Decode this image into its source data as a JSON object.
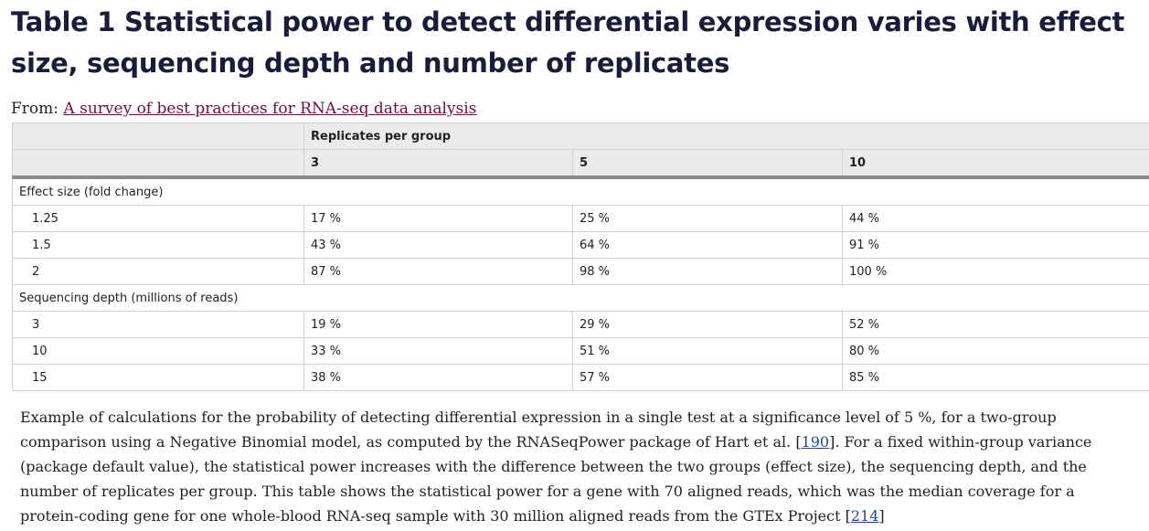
{
  "title": "Table 1 Statistical power to detect differential expression varies with effect size, sequencing depth and number of replicates",
  "from": {
    "label": "From:",
    "link_text": "A survey of best practices for RNA-seq data analysis"
  },
  "table": {
    "group_header": "Replicates per group",
    "columns": [
      "3",
      "5",
      "10"
    ],
    "sections": [
      {
        "label": "Effect size (fold change)",
        "rows": [
          {
            "label": "1.25",
            "values": [
              "17 %",
              "25 %",
              "44 %"
            ]
          },
          {
            "label": "1.5",
            "values": [
              "43 %",
              "64 %",
              "91 %"
            ]
          },
          {
            "label": "2",
            "values": [
              "87 %",
              "98 %",
              "100 %"
            ]
          }
        ]
      },
      {
        "label": "Sequencing depth (millions of reads)",
        "rows": [
          {
            "label": "3",
            "values": [
              "19 %",
              "29 %",
              "52 %"
            ]
          },
          {
            "label": "10",
            "values": [
              "33 %",
              "51 %",
              "80 %"
            ]
          },
          {
            "label": "15",
            "values": [
              "38 %",
              "57 %",
              "85 %"
            ]
          }
        ]
      }
    ]
  },
  "caption": {
    "part1": "Example of calculations for the probability of detecting differential expression in a single test at a significance level of 5 %, for a two-group comparison using a Negative Binomial model, as computed by the RNASeqPower package of Hart et al. [",
    "ref1": "190",
    "part2": "]. For a fixed within-group variance (package default value), the statistical power increases with the difference between the two groups (effect size), the sequencing depth, and the number of replicates per group. This table shows the statistical power for a gene with 70 aligned reads, which was the median coverage for a protein-coding gene for one whole-blood RNA-seq sample with 30 million aligned reads from the GTEx Project [",
    "ref2": "214",
    "part3": "]"
  }
}
